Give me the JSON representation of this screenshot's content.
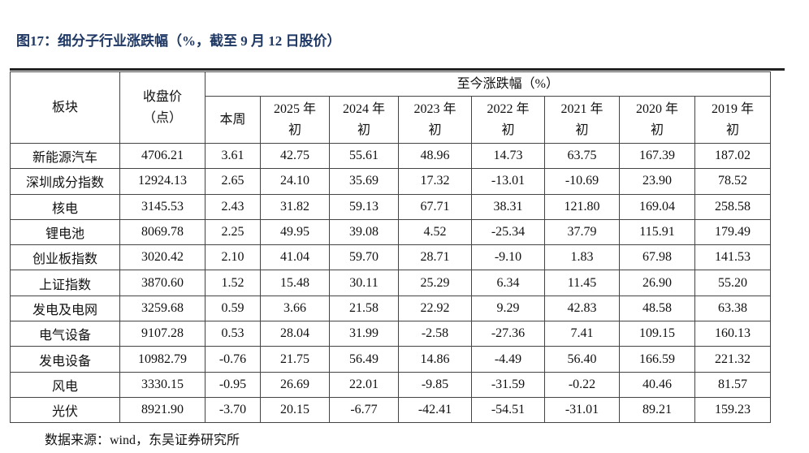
{
  "header": {
    "title": "图17：细分子行业涨跌幅（%，截至 9 月 12 日股价）"
  },
  "table": {
    "col_sector": "板块",
    "col_close": [
      "收盘价",
      "（点）"
    ],
    "col_change_group": "至今涨跌幅（%）",
    "sub_columns": [
      [
        "本周"
      ],
      [
        "2025 年",
        "初"
      ],
      [
        "2024 年",
        "初"
      ],
      [
        "2023 年",
        "初"
      ],
      [
        "2022 年",
        "初"
      ],
      [
        "2021 年",
        "初"
      ],
      [
        "2020 年",
        "初"
      ],
      [
        "2019 年",
        "初"
      ]
    ],
    "rows": [
      [
        "新能源汽车",
        "4706.21",
        "3.61",
        "42.75",
        "55.61",
        "48.96",
        "14.73",
        "63.75",
        "167.39",
        "187.02"
      ],
      [
        "深圳成分指数",
        "12924.13",
        "2.65",
        "24.10",
        "35.69",
        "17.32",
        "-13.01",
        "-10.69",
        "23.90",
        "78.52"
      ],
      [
        "核电",
        "3145.53",
        "2.43",
        "31.82",
        "59.13",
        "67.71",
        "38.31",
        "121.80",
        "169.04",
        "258.58"
      ],
      [
        "锂电池",
        "8069.78",
        "2.25",
        "49.95",
        "39.08",
        "4.52",
        "-25.34",
        "37.79",
        "115.91",
        "179.49"
      ],
      [
        "创业板指数",
        "3020.42",
        "2.10",
        "41.04",
        "59.70",
        "28.71",
        "-9.10",
        "1.83",
        "67.98",
        "141.53"
      ],
      [
        "上证指数",
        "3870.60",
        "1.52",
        "15.48",
        "30.11",
        "25.29",
        "6.34",
        "11.45",
        "26.90",
        "55.20"
      ],
      [
        "发电及电网",
        "3259.68",
        "0.59",
        "3.66",
        "21.58",
        "22.92",
        "9.29",
        "42.83",
        "48.58",
        "63.38"
      ],
      [
        "电气设备",
        "9107.28",
        "0.53",
        "28.04",
        "31.99",
        "-2.58",
        "-27.36",
        "7.41",
        "109.15",
        "160.13"
      ],
      [
        "发电设备",
        "10982.79",
        "-0.76",
        "21.75",
        "56.49",
        "14.86",
        "-4.49",
        "56.40",
        "166.59",
        "221.32"
      ],
      [
        "风电",
        "3330.15",
        "-0.95",
        "26.69",
        "22.01",
        "-9.85",
        "-31.59",
        "-0.22",
        "40.46",
        "81.57"
      ],
      [
        "光伏",
        "8921.90",
        "-3.70",
        "20.15",
        "-6.77",
        "-42.41",
        "-54.51",
        "-31.01",
        "89.21",
        "159.23"
      ]
    ]
  },
  "footer": {
    "source": "数据来源：wind，东吴证券研究所"
  }
}
